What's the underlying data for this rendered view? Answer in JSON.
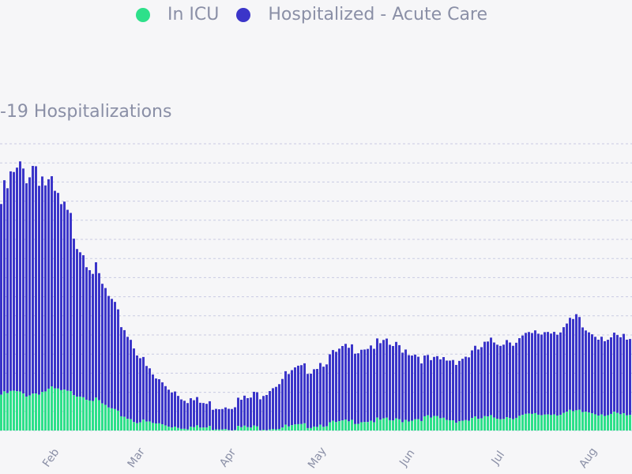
{
  "legend": {
    "items": [
      {
        "label": "In ICU",
        "color": "#2ee08a"
      },
      {
        "label": "Hospitalized - Acute Care",
        "color": "#3b35c9"
      }
    ]
  },
  "chart_data": {
    "type": "bar",
    "stacked": true,
    "title": "-19 Hospitalizations",
    "x_tick_labels": [
      "Feb",
      "Mar",
      "Apr",
      "May",
      "Jun",
      "Jul",
      "Aug"
    ],
    "grid": true,
    "ylim": [
      0,
      100
    ],
    "series": [
      {
        "name": "In ICU",
        "color": "#2ee08a",
        "anchors": [
          [
            0,
            13
          ],
          [
            4,
            14
          ],
          [
            8,
            13
          ],
          [
            13,
            14
          ],
          [
            16,
            15
          ],
          [
            20,
            14
          ],
          [
            25,
            13
          ],
          [
            30,
            11
          ],
          [
            36,
            7
          ],
          [
            42,
            4
          ],
          [
            48,
            3
          ],
          [
            55,
            2
          ],
          [
            62,
            1.5
          ],
          [
            70,
            1.5
          ],
          [
            78,
            1.5
          ],
          [
            86,
            1.5
          ],
          [
            95,
            2
          ],
          [
            105,
            3
          ],
          [
            115,
            4
          ],
          [
            125,
            4
          ],
          [
            135,
            5
          ],
          [
            145,
            4
          ],
          [
            155,
            5
          ],
          [
            165,
            5.5
          ],
          [
            175,
            6.5
          ],
          [
            185,
            7
          ],
          [
            195,
            6
          ],
          [
            199,
            5.5
          ]
        ]
      },
      {
        "name": "Hospitalized - Acute Care",
        "color": "#3b35c9",
        "anchors": [
          [
            0,
            82
          ],
          [
            3,
            90
          ],
          [
            6,
            93
          ],
          [
            9,
            95
          ],
          [
            11,
            97
          ],
          [
            13,
            92
          ],
          [
            16,
            86
          ],
          [
            19,
            80
          ],
          [
            22,
            75
          ],
          [
            25,
            68
          ],
          [
            28,
            62
          ],
          [
            31,
            54
          ],
          [
            34,
            48
          ],
          [
            37,
            41
          ],
          [
            40,
            35
          ],
          [
            43,
            29
          ],
          [
            46,
            23
          ],
          [
            49,
            19
          ],
          [
            52,
            17
          ],
          [
            55,
            15
          ],
          [
            58,
            13
          ],
          [
            62,
            11
          ],
          [
            66,
            10
          ],
          [
            70,
            10
          ],
          [
            74,
            11
          ],
          [
            78,
            12
          ],
          [
            82,
            14
          ],
          [
            86,
            17
          ],
          [
            90,
            20
          ],
          [
            94,
            22
          ],
          [
            98,
            23
          ],
          [
            103,
            26
          ],
          [
            108,
            29
          ],
          [
            112,
            30
          ],
          [
            117,
            31
          ],
          [
            122,
            31
          ],
          [
            127,
            30
          ],
          [
            131,
            28
          ],
          [
            134,
            26
          ],
          [
            137,
            25
          ],
          [
            141,
            26
          ],
          [
            145,
            26
          ],
          [
            149,
            28
          ],
          [
            152,
            30
          ],
          [
            156,
            32
          ],
          [
            160,
            33
          ],
          [
            164,
            33
          ],
          [
            168,
            34
          ],
          [
            172,
            36
          ],
          [
            176,
            37
          ],
          [
            180,
            38
          ],
          [
            182,
            40
          ],
          [
            185,
            36
          ],
          [
            190,
            35
          ],
          [
            194,
            33
          ],
          [
            197,
            33
          ],
          [
            199,
            32
          ]
        ]
      }
    ]
  }
}
